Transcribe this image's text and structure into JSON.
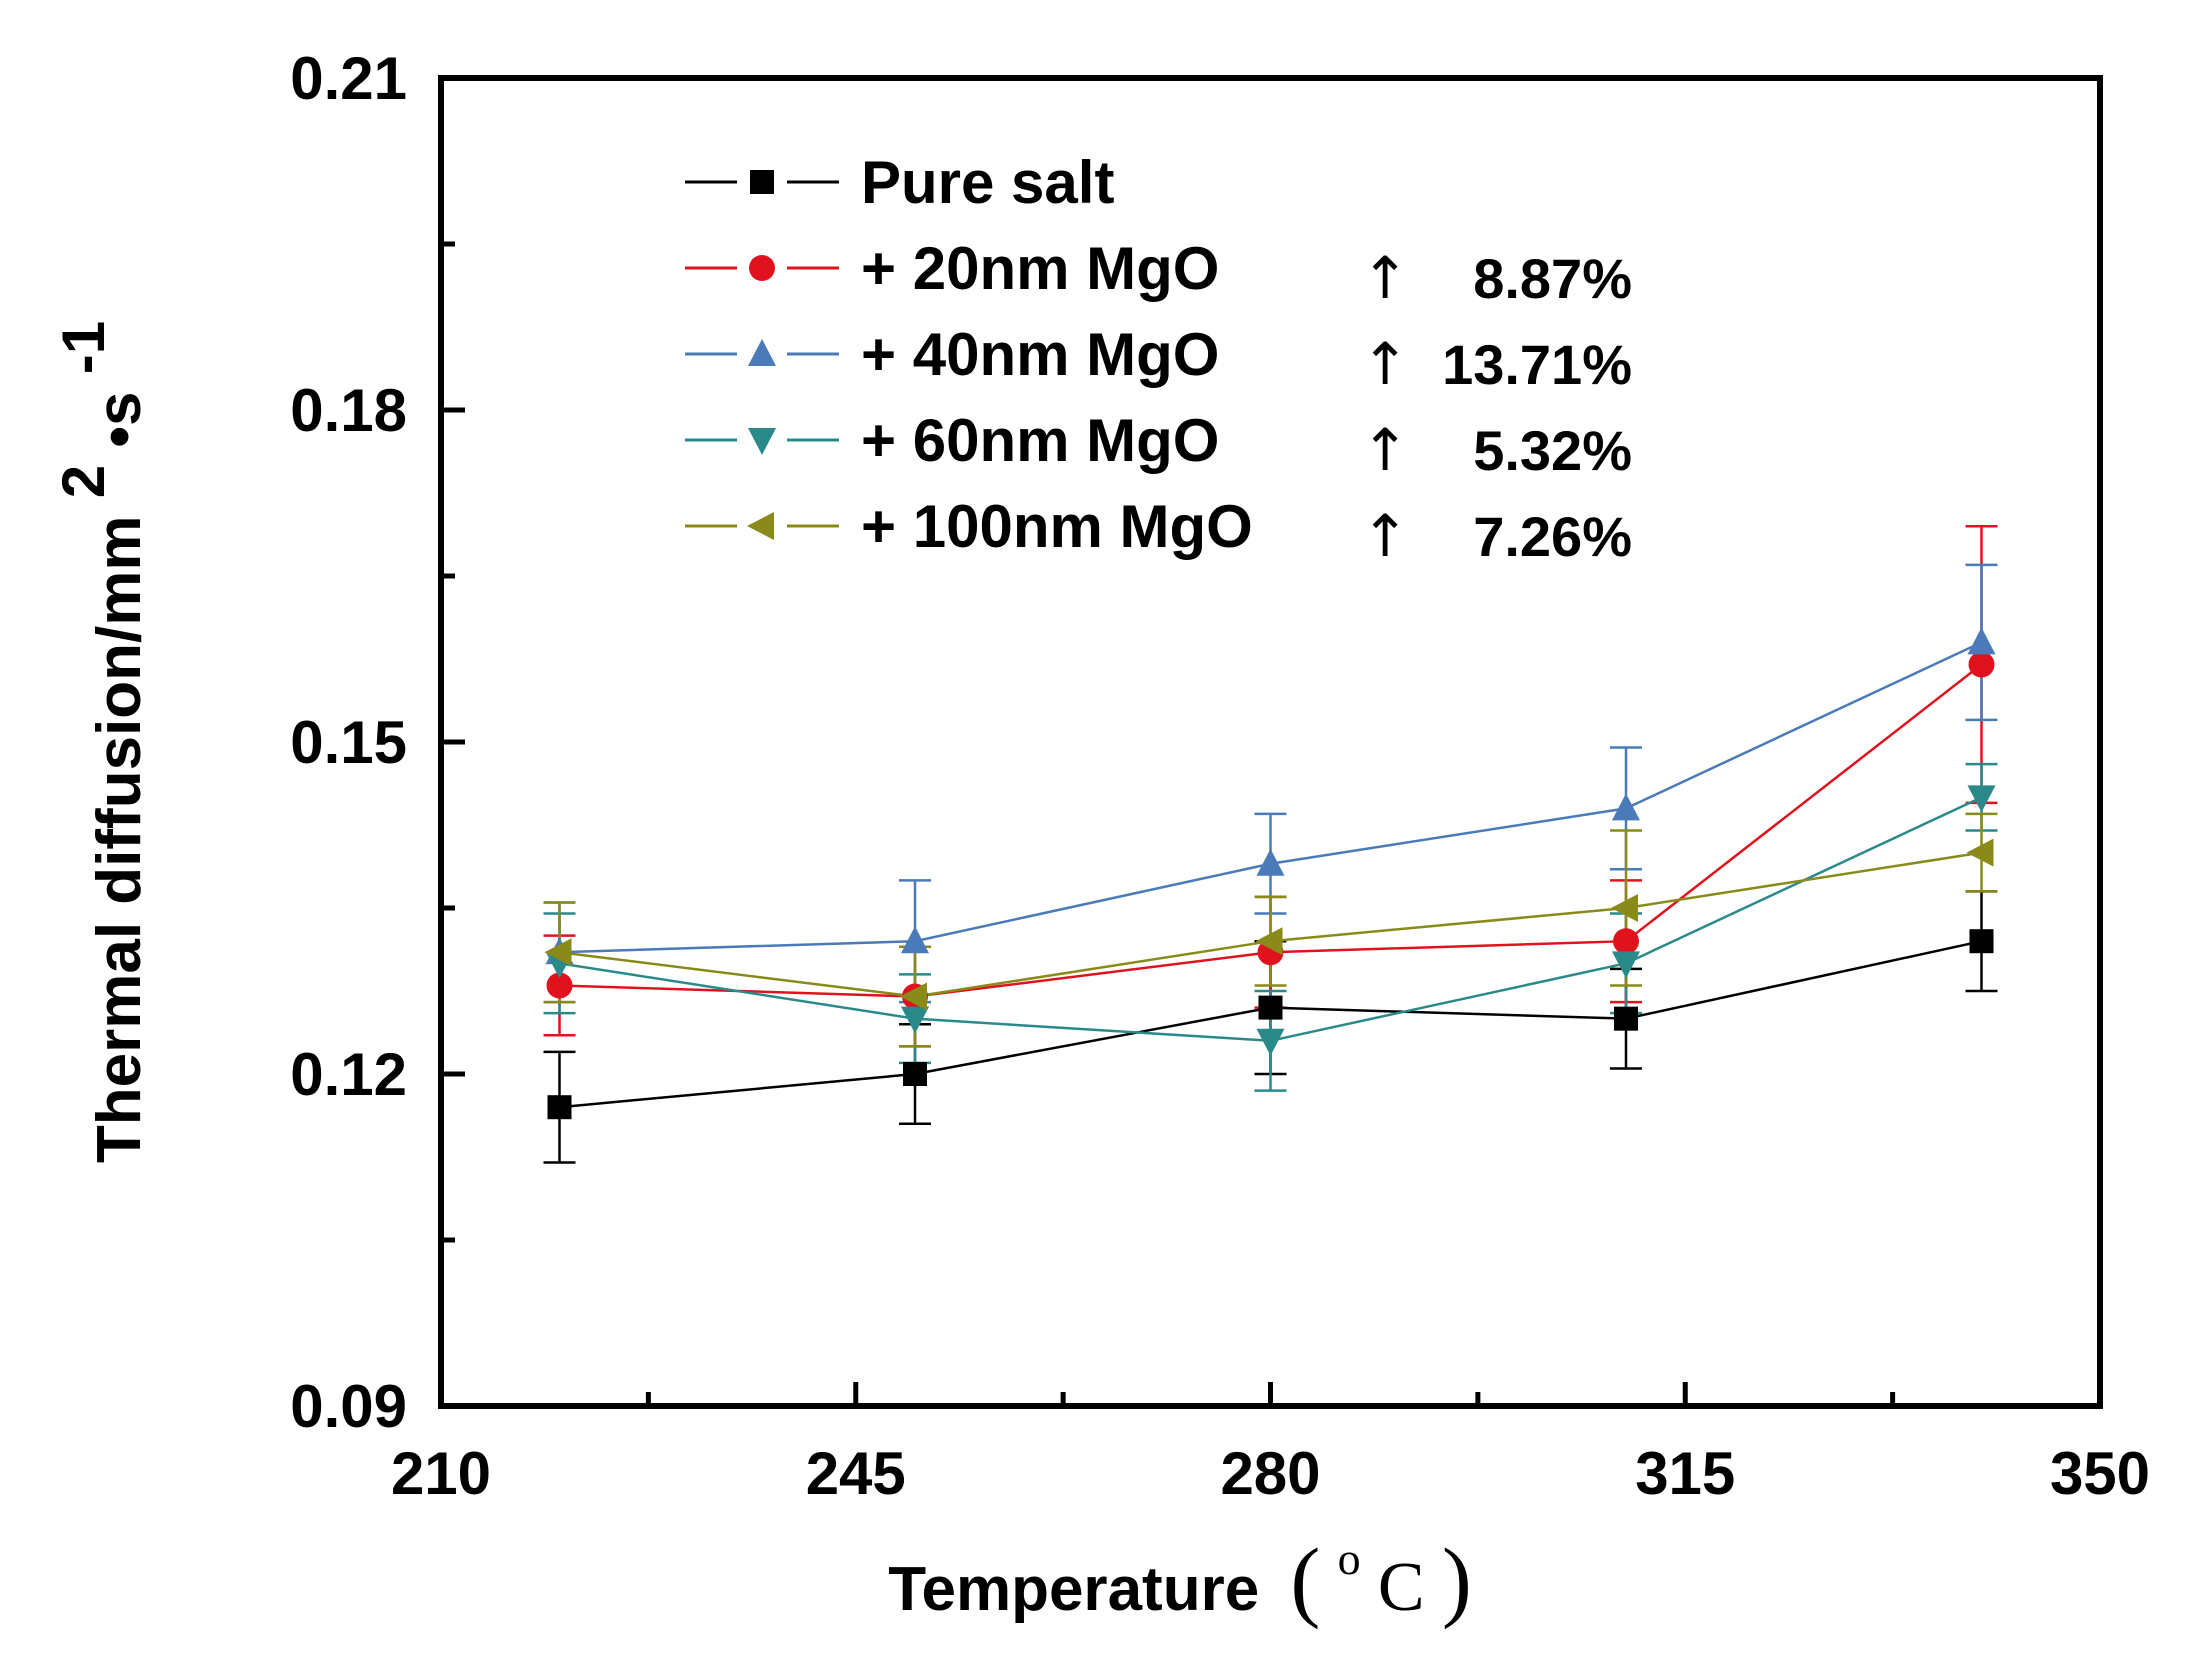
{
  "chart_data": {
    "type": "line",
    "title": "",
    "xlabel": "Temperature",
    "xlabel_unit_open": "(",
    "xlabel_unit_sup": "o",
    "xlabel_unit": "C",
    "xlabel_unit_close": ")",
    "ylabel": "Thermal diffusion/mm",
    "ylabel_sup1": "2",
    "ylabel_mid": "•s",
    "ylabel_sup2": "-1",
    "xlim": [
      210,
      350
    ],
    "ylim": [
      0.09,
      0.21
    ],
    "xticks": [
      "210",
      "245",
      "280",
      "315",
      "350"
    ],
    "yticks": [
      "0.09",
      "0.12",
      "0.15",
      "0.18",
      "0.21"
    ],
    "x": [
      220,
      250,
      280,
      310,
      340
    ],
    "legend_position": "top-left",
    "series": [
      {
        "name": "Pure salt",
        "color": "#000000",
        "marker": "square",
        "improvement": "",
        "values": [
          0.117,
          0.12,
          0.126,
          0.125,
          0.132
        ],
        "errors": [
          0.005,
          0.0045,
          0.006,
          0.0045,
          0.0045
        ]
      },
      {
        "name": "+ 20nm MgO",
        "color": "#e0121e",
        "marker": "circle",
        "improvement": "8.87%",
        "values": [
          0.128,
          0.127,
          0.131,
          0.132,
          0.157
        ],
        "errors": [
          0.0045,
          0.0045,
          0.005,
          0.0055,
          0.0125
        ]
      },
      {
        "name": "+ 40nm MgO",
        "color": "#4a7ab8",
        "marker": "triangle-up",
        "improvement": "13.71%",
        "values": [
          0.131,
          0.132,
          0.139,
          0.144,
          0.159
        ],
        "errors": [
          0.0045,
          0.0055,
          0.0045,
          0.0055,
          0.007
        ]
      },
      {
        "name": "+ 60nm MgO",
        "color": "#2a8a8a",
        "marker": "triangle-down",
        "improvement": "5.32%",
        "values": [
          0.13,
          0.125,
          0.123,
          0.13,
          0.145
        ],
        "errors": [
          0.0045,
          0.004,
          0.0045,
          0.0045,
          0.003
        ]
      },
      {
        "name": "+ 100nm MgO",
        "color": "#8a8a1a",
        "marker": "triangle-left",
        "improvement": "7.26%",
        "values": [
          0.131,
          0.127,
          0.132,
          0.135,
          0.14
        ],
        "errors": [
          0.0045,
          0.0045,
          0.004,
          0.007,
          0.0035
        ]
      }
    ]
  }
}
